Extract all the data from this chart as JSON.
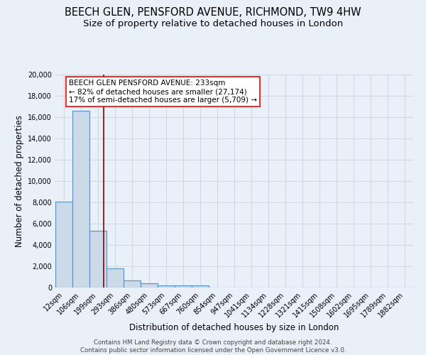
{
  "title": "BEECH GLEN, PENSFORD AVENUE, RICHMOND, TW9 4HW",
  "subtitle": "Size of property relative to detached houses in London",
  "xlabel": "Distribution of detached houses by size in London",
  "ylabel": "Number of detached properties",
  "footer_line1": "Contains HM Land Registry data © Crown copyright and database right 2024.",
  "footer_line2": "Contains public sector information licensed under the Open Government Licence v3.0.",
  "categories": [
    "12sqm",
    "106sqm",
    "199sqm",
    "293sqm",
    "386sqm",
    "480sqm",
    "573sqm",
    "667sqm",
    "760sqm",
    "854sqm",
    "947sqm",
    "1041sqm",
    "1134sqm",
    "1228sqm",
    "1321sqm",
    "1415sqm",
    "1508sqm",
    "1602sqm",
    "1695sqm",
    "1789sqm",
    "1882sqm"
  ],
  "values": [
    8050,
    16600,
    5350,
    1820,
    700,
    380,
    230,
    180,
    170,
    0,
    0,
    0,
    0,
    0,
    0,
    0,
    0,
    0,
    0,
    0,
    0
  ],
  "bar_fill_color": "#ccd9e8",
  "bar_edge_color": "#5a8fc0",
  "vline_x": 2.33,
  "vline_color": "#8b0000",
  "annotation_text": "BEECH GLEN PENSFORD AVENUE: 233sqm\n← 82% of detached houses are smaller (27,174)\n17% of semi-detached houses are larger (5,709) →",
  "annotation_box_color": "white",
  "annotation_box_edge_color": "red",
  "ylim": [
    0,
    20000
  ],
  "yticks": [
    0,
    2000,
    4000,
    6000,
    8000,
    10000,
    12000,
    14000,
    16000,
    18000,
    20000
  ],
  "background_color": "#eaf0f8",
  "grid_color": "#d0d8e4",
  "title_fontsize": 10.5,
  "subtitle_fontsize": 9.5,
  "axis_label_fontsize": 8.5,
  "tick_fontsize": 7.0,
  "annotation_fontsize": 7.5,
  "footer_fontsize": 6.2
}
